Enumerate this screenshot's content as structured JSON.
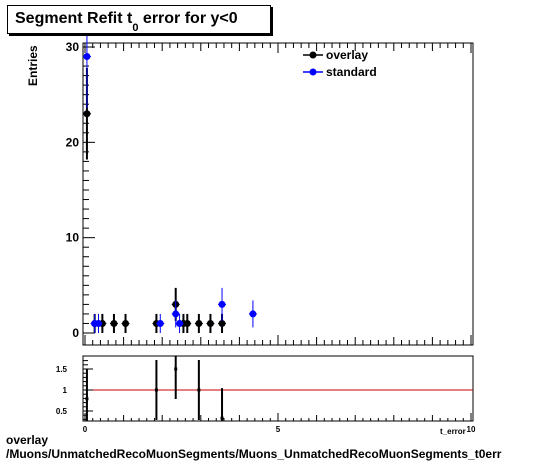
{
  "title": {
    "main": "Segment Refit t",
    "subscript": "0",
    "rest": " error for y<0"
  },
  "footer": {
    "line1": "overlay",
    "line2": "/Muons/UnmatchedRecoMuonSegments/Muons_UnmatchedRecoMuonSegments_t0err"
  },
  "chart_data": [
    {
      "type": "scatter",
      "ylabel": "Entries",
      "xlim": [
        0,
        10
      ],
      "ylim": [
        0,
        31
      ],
      "y_ticks": [
        "0",
        "10",
        "20",
        "30"
      ],
      "grid": false,
      "legend_position": "top-right",
      "series": [
        {
          "name": "overlay",
          "color": "#000000",
          "points": [
            {
              "x": 0.05,
              "y": 23
            },
            {
              "x": 0.25,
              "y": 1
            },
            {
              "x": 0.45,
              "y": 1
            },
            {
              "x": 0.75,
              "y": 1
            },
            {
              "x": 1.05,
              "y": 1
            },
            {
              "x": 1.85,
              "y": 1
            },
            {
              "x": 2.35,
              "y": 3
            },
            {
              "x": 2.55,
              "y": 1
            },
            {
              "x": 2.65,
              "y": 1
            },
            {
              "x": 2.95,
              "y": 1
            },
            {
              "x": 3.25,
              "y": 1
            },
            {
              "x": 3.55,
              "y": 1
            }
          ]
        },
        {
          "name": "standard",
          "color": "#0000ff",
          "points": [
            {
              "x": 0.05,
              "y": 29
            },
            {
              "x": 0.25,
              "y": 1
            },
            {
              "x": 0.35,
              "y": 1
            },
            {
              "x": 1.95,
              "y": 1
            },
            {
              "x": 2.35,
              "y": 2
            },
            {
              "x": 2.45,
              "y": 1
            },
            {
              "x": 3.55,
              "y": 3
            },
            {
              "x": 4.35,
              "y": 2
            }
          ]
        }
      ]
    },
    {
      "type": "scatter",
      "xlim": [
        0,
        10
      ],
      "ylim": [
        0.3,
        1.75
      ],
      "x_ticks": [
        "0",
        "5",
        "10"
      ],
      "y_ticks": [
        "0.5",
        "1",
        "1.5"
      ],
      "xlabel": "t_error",
      "reference_line": {
        "y": 1,
        "color": "#cc0000"
      },
      "points": [
        {
          "x": 0.05,
          "y": 0.79
        },
        {
          "x": 1.85,
          "y": 1.0
        },
        {
          "x": 2.35,
          "y": 1.5
        },
        {
          "x": 2.95,
          "y": 1.0
        },
        {
          "x": 3.55,
          "y": 0.33
        }
      ]
    }
  ]
}
